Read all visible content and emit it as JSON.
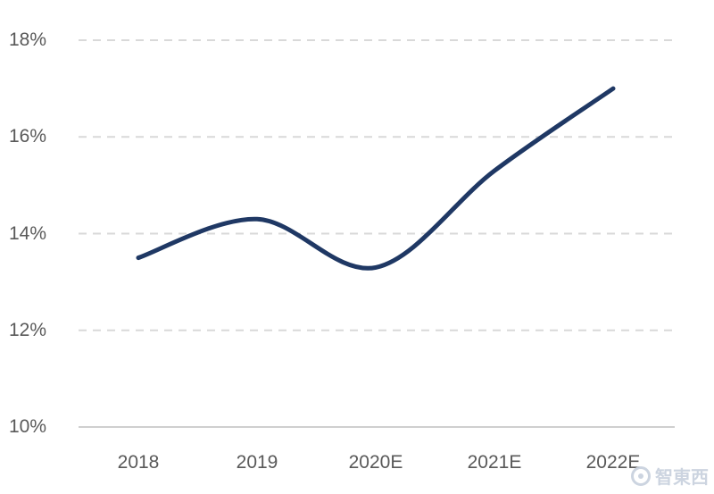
{
  "chart_data": {
    "type": "line",
    "title": "",
    "xlabel": "",
    "ylabel": "",
    "categories": [
      "2018",
      "2019",
      "2020E",
      "2021E",
      "2022E"
    ],
    "values": [
      13.5,
      14.3,
      13.3,
      15.3,
      17.0
    ],
    "ylim": [
      10,
      18
    ],
    "ytick_step": 2,
    "ytick_labels": [
      "18%",
      "16%",
      "14%",
      "12%",
      "10%"
    ],
    "grid": "horizontal dashed gridlines, solid baseline at 10%",
    "legend": "none",
    "line_color": "#1f3864",
    "gridline_color": "#d9d9d9",
    "baseline_color": "#bfbfbf",
    "label_color": "#595959"
  },
  "watermark": {
    "text": "智東西"
  }
}
